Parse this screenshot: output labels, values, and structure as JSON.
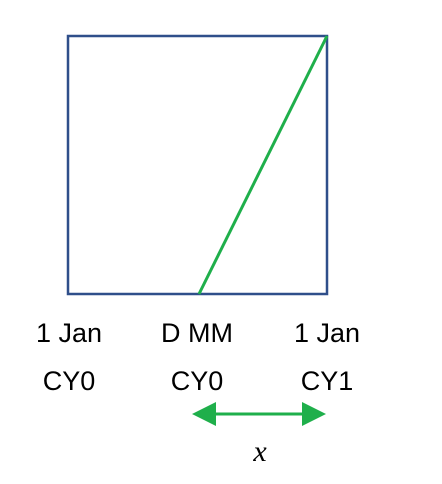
{
  "labels": [
    {
      "line1": "1 Jan",
      "line2": "CY0"
    },
    {
      "line1": "D MM",
      "line2": "CY0"
    },
    {
      "line1": "1 Jan",
      "line2": "CY1"
    }
  ],
  "variable": "x",
  "colors": {
    "box": "#2F4F8A",
    "line": "#1FAF4B",
    "text": "#000000"
  }
}
